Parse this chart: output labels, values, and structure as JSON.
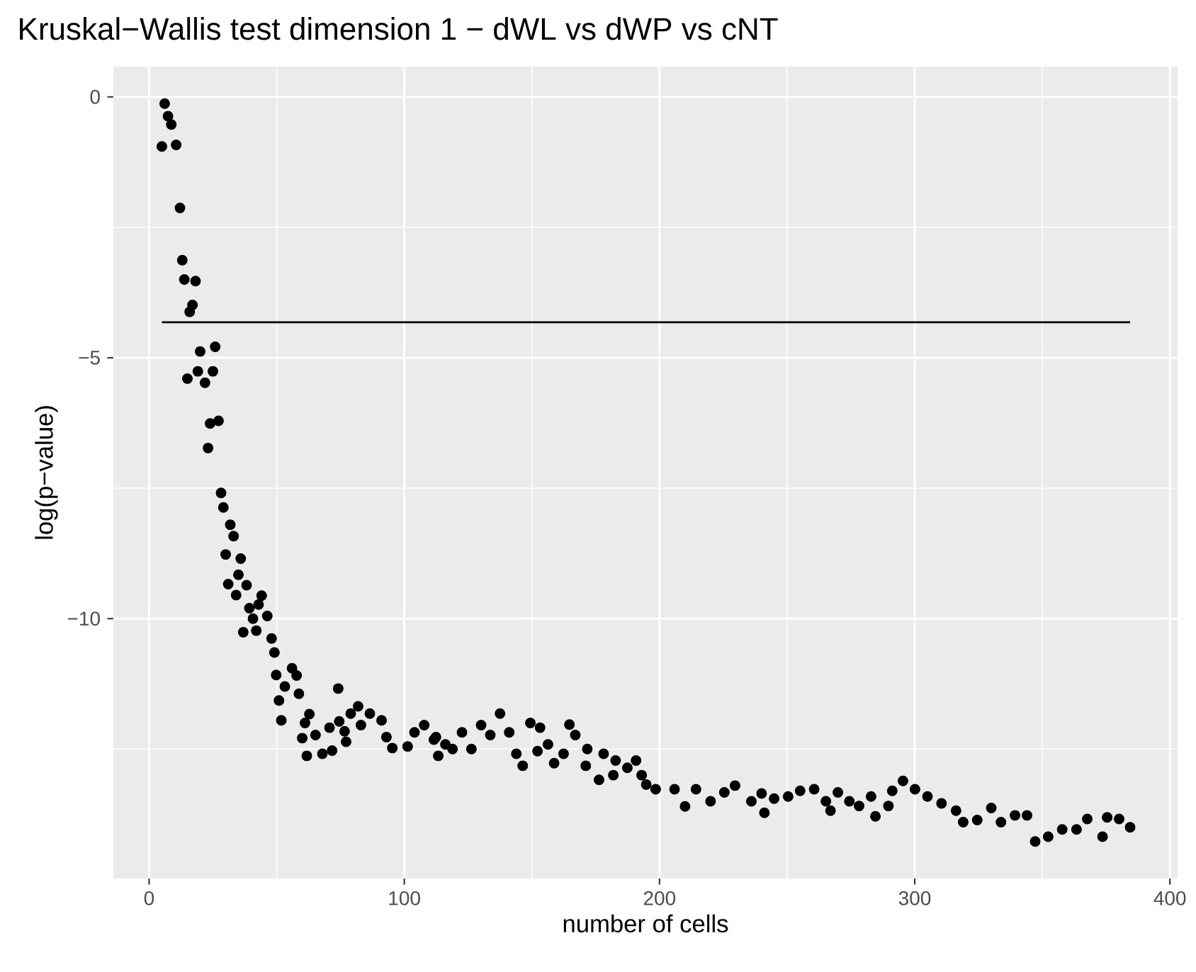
{
  "chart_data": {
    "type": "scatter",
    "title": "Kruskal−Wallis test dimension 1 − dWL vs dWP vs cNT",
    "xlabel": "number of cells",
    "ylabel": "log(p−value)",
    "xlim": [
      -14,
      403
    ],
    "ylim": [
      -14.98,
      0.58
    ],
    "xticks": [
      0,
      {
        "value": 50,
        "label": null
      },
      100,
      {
        "value": 150,
        "label": null
      },
      200,
      {
        "value": 250,
        "label": null
      },
      300,
      {
        "value": 350,
        "label": null
      },
      400
    ],
    "yticks": [
      {
        "value": -12.5,
        "label": null
      },
      {
        "value": -10,
        "label": "−10"
      },
      {
        "value": -7.5,
        "label": null
      },
      {
        "value": -5,
        "label": "−5"
      },
      {
        "value": -2.5,
        "label": null
      },
      0
    ],
    "grid": true,
    "marker": "circle",
    "series": [
      {
        "color": "#000000",
        "x": [
          5.0,
          6.1,
          7.4,
          8.7,
          10.6,
          12.1,
          13.0,
          13.8,
          15.0,
          15.9,
          17.0,
          18.2,
          19.1,
          20.0,
          21.9,
          23.1,
          23.9,
          25.0,
          25.9,
          27.2,
          28.2,
          29.1,
          30.0,
          31.0,
          31.8,
          33.1,
          34.1,
          35.0,
          35.9,
          36.9,
          38.2,
          39.3,
          40.7,
          42.0,
          42.9,
          44.1,
          46.3,
          48.0,
          49.1,
          49.8,
          50.9,
          51.8,
          53.2,
          56.0,
          57.8,
          58.7,
          60.0,
          61.1,
          61.8,
          62.8,
          65.2,
          67.9,
          70.7,
          71.7,
          74.1,
          74.5,
          76.6,
          77.2,
          79.0,
          81.9,
          83.0,
          86.5,
          91.1,
          93.0,
          95.3,
          101.3,
          104.0,
          107.8,
          111.6,
          112.4,
          113.3,
          116.1,
          118.9,
          122.6,
          126.3,
          130.1,
          133.7,
          137.5,
          141.1,
          143.9,
          146.4,
          149.4,
          152.2,
          153.2,
          156.3,
          158.7,
          162.4,
          164.7,
          167.0,
          171.1,
          171.7,
          176.3,
          178.1,
          181.9,
          182.8,
          187.4,
          190.8,
          193.0,
          194.8,
          198.5,
          205.9,
          210.0,
          214.3,
          220.0,
          225.4,
          229.6,
          236.0,
          240.0,
          241.1,
          244.9,
          250.4,
          255.1,
          260.6,
          265.2,
          267.0,
          269.9,
          274.4,
          278.2,
          282.9,
          284.6,
          289.7,
          291.2,
          295.4,
          300.1,
          305.0,
          310.5,
          316.2,
          319.0,
          324.5,
          330.0,
          333.8,
          339.3,
          344.0,
          347.2,
          352.3,
          357.8,
          363.4,
          367.6,
          373.6,
          375.4,
          380.1,
          384.4
        ],
        "values": [
          -0.95,
          -0.13,
          -0.37,
          -0.53,
          -0.92,
          -2.13,
          -3.13,
          -3.5,
          -5.4,
          -4.12,
          -3.99,
          -3.53,
          -5.26,
          -4.88,
          -5.48,
          -6.73,
          -6.26,
          -5.26,
          -4.79,
          -6.21,
          -7.59,
          -7.87,
          -8.77,
          -9.34,
          -8.2,
          -8.42,
          -9.55,
          -9.16,
          -8.85,
          -10.26,
          -9.36,
          -9.8,
          -10.0,
          -10.23,
          -9.73,
          -9.56,
          -9.95,
          -10.38,
          -10.65,
          -11.08,
          -11.57,
          -11.95,
          -11.3,
          -10.95,
          -11.09,
          -11.44,
          -12.29,
          -12.0,
          -12.63,
          -11.83,
          -12.23,
          -12.59,
          -12.09,
          -12.53,
          -11.34,
          -11.97,
          -12.16,
          -12.36,
          -11.82,
          -11.68,
          -12.04,
          -11.82,
          -11.95,
          -12.27,
          -12.48,
          -12.45,
          -12.18,
          -12.04,
          -12.32,
          -12.27,
          -12.63,
          -12.41,
          -12.5,
          -12.18,
          -12.5,
          -12.04,
          -12.23,
          -11.82,
          -12.18,
          -12.59,
          -12.82,
          -12.0,
          -12.54,
          -12.09,
          -12.41,
          -12.77,
          -12.59,
          -12.03,
          -12.23,
          -12.82,
          -12.5,
          -13.09,
          -12.59,
          -13.0,
          -12.72,
          -12.86,
          -12.72,
          -13.0,
          -13.18,
          -13.27,
          -13.27,
          -13.6,
          -13.27,
          -13.5,
          -13.33,
          -13.2,
          -13.5,
          -13.35,
          -13.72,
          -13.45,
          -13.41,
          -13.3,
          -13.27,
          -13.5,
          -13.68,
          -13.33,
          -13.5,
          -13.59,
          -13.41,
          -13.79,
          -13.59,
          -13.3,
          -13.11,
          -13.27,
          -13.41,
          -13.54,
          -13.68,
          -13.9,
          -13.86,
          -13.63,
          -13.9,
          -13.77,
          -13.77,
          -14.27,
          -14.18,
          -14.04,
          -14.04,
          -13.84,
          -14.18,
          -13.81,
          -13.84,
          -14.0
        ]
      },
      {
        "type": "line",
        "color": "#000000",
        "marker": "none",
        "x": [
          5.0,
          384.4
        ],
        "values": [
          -4.32,
          -4.32
        ]
      }
    ]
  }
}
